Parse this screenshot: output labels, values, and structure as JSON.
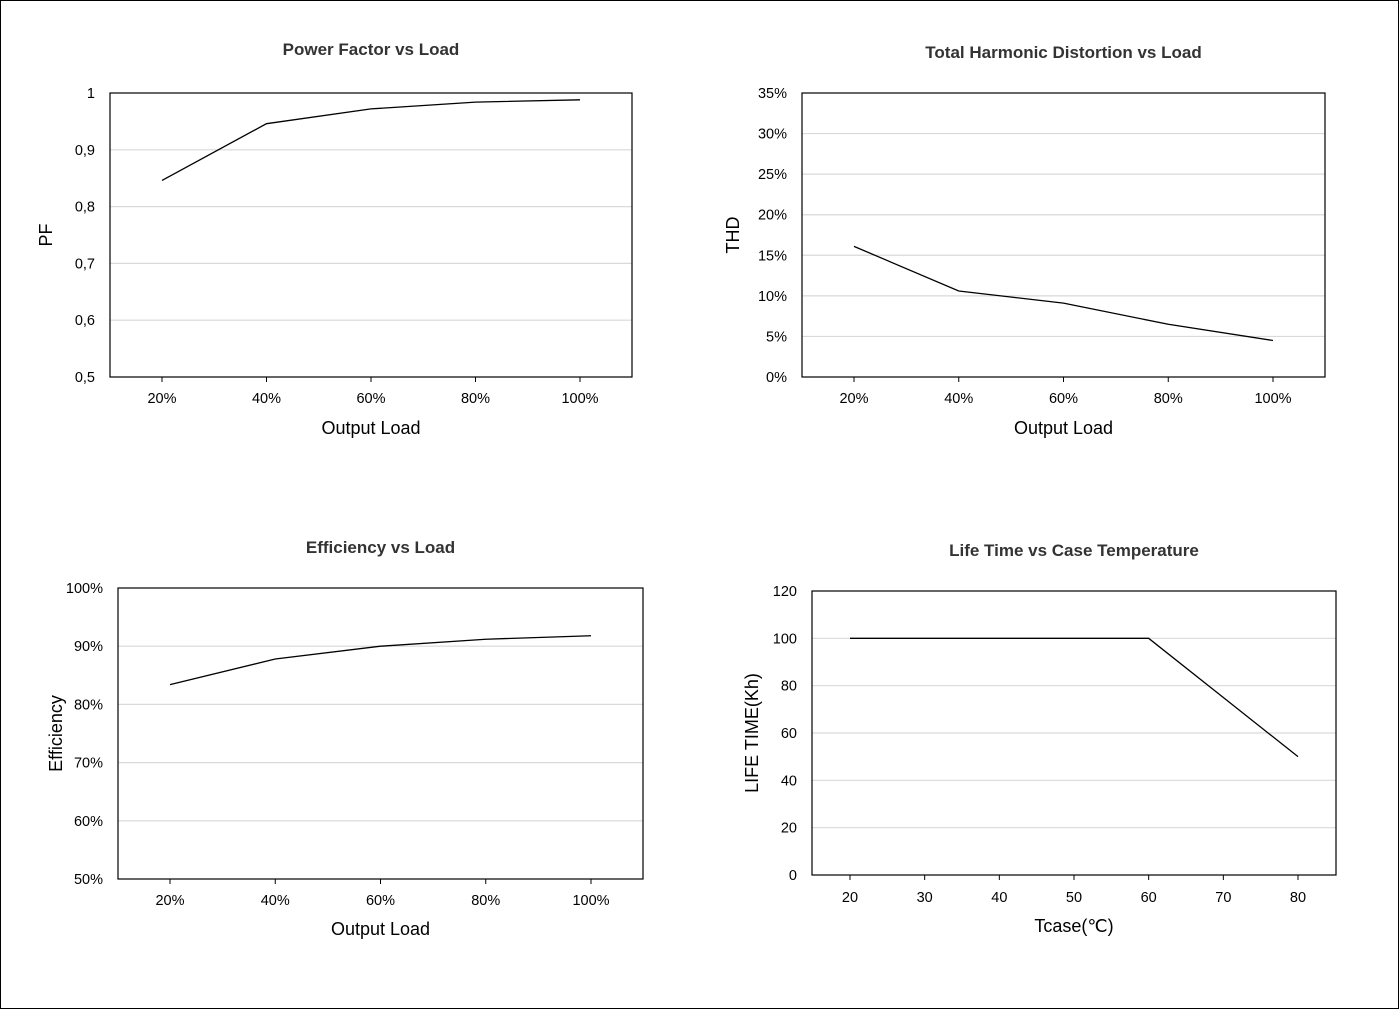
{
  "charts": [
    {
      "type": "line",
      "title": "Power Factor vs Load",
      "xlabel": "Output Load",
      "ylabel": "PF",
      "categories": [
        "20%",
        "40%",
        "60%",
        "80%",
        "100%"
      ],
      "ylim": [
        0.5,
        1
      ],
      "yticks": [
        "0,5",
        "0,6",
        "0,7",
        "0,8",
        "0,9",
        "1"
      ],
      "values": [
        0.846,
        0.946,
        0.972,
        0.984,
        0.988
      ],
      "grid": true,
      "line_color": "#000000",
      "grid_color": "#d9d9d9"
    },
    {
      "type": "line",
      "title": "Total Harmonic Distortion vs Load",
      "xlabel": "Output Load",
      "ylabel": "THD",
      "categories": [
        "20%",
        "40%",
        "60%",
        "80%",
        "100%"
      ],
      "ylim": [
        0,
        0.35
      ],
      "yticks": [
        "0%",
        "5%",
        "10%",
        "15%",
        "20%",
        "25%",
        "30%",
        "35%"
      ],
      "values": [
        0.161,
        0.106,
        0.091,
        0.065,
        0.045
      ],
      "grid": true,
      "line_color": "#000000",
      "grid_color": "#d9d9d9"
    },
    {
      "type": "line",
      "title": "Efficiency vs Load",
      "xlabel": "Output Load",
      "ylabel": "Efficiency",
      "categories": [
        "20%",
        "40%",
        "60%",
        "80%",
        "100%"
      ],
      "ylim": [
        0.5,
        1
      ],
      "yticks": [
        "50%",
        "60%",
        "70%",
        "80%",
        "90%",
        "100%"
      ],
      "values": [
        0.834,
        0.878,
        0.9,
        0.912,
        0.918
      ],
      "grid": true,
      "line_color": "#000000",
      "grid_color": "#d9d9d9"
    },
    {
      "type": "line",
      "title": "Life Time vs Case Temperature",
      "xlabel": "Tcase(℃)",
      "ylabel": "LIFE TIME(Kh)",
      "categories": [
        "20",
        "30",
        "40",
        "50",
        "60",
        "70",
        "80"
      ],
      "ylim": [
        0,
        120
      ],
      "yticks": [
        "0",
        "20",
        "40",
        "60",
        "80",
        "100",
        "120"
      ],
      "values": [
        100,
        100,
        100,
        100,
        100,
        75,
        50
      ],
      "grid": true,
      "line_color": "#000000",
      "grid_color": "#d9d9d9"
    }
  ]
}
